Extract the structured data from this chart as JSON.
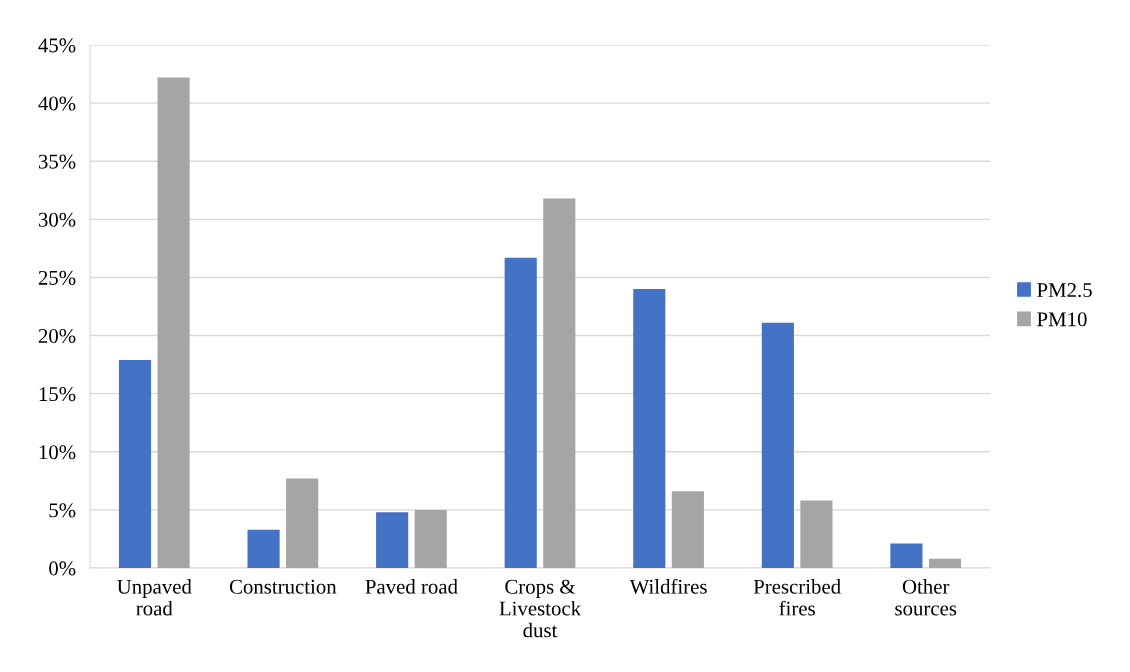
{
  "chart_data": {
    "type": "bar",
    "categories": [
      "Unpaved\nroad",
      "Construction",
      "Paved road",
      "Crops &\nLivestock\ndust",
      "Wildfires",
      "Prescribed\nfires",
      "Other\nsources"
    ],
    "series": [
      {
        "name": "PM2.5",
        "color": "#4472c4",
        "values": [
          17.9,
          3.3,
          4.8,
          26.7,
          24.0,
          21.1,
          2.1
        ]
      },
      {
        "name": "PM10",
        "color": "#a5a5a5",
        "values": [
          42.2,
          7.7,
          5.0,
          31.8,
          6.6,
          5.8,
          0.8
        ]
      }
    ],
    "ylim": [
      0,
      45
    ],
    "yticks": [
      {
        "value": 0,
        "label": "0%"
      },
      {
        "value": 5,
        "label": "5%"
      },
      {
        "value": 10,
        "label": "10%"
      },
      {
        "value": 15,
        "label": "15%"
      },
      {
        "value": 20,
        "label": "20%"
      },
      {
        "value": 25,
        "label": "25%"
      },
      {
        "value": 30,
        "label": "30%"
      },
      {
        "value": 35,
        "label": "35%"
      },
      {
        "value": 40,
        "label": "40%"
      },
      {
        "value": 45,
        "label": "45%"
      }
    ],
    "grid": "y",
    "legend": "right"
  }
}
